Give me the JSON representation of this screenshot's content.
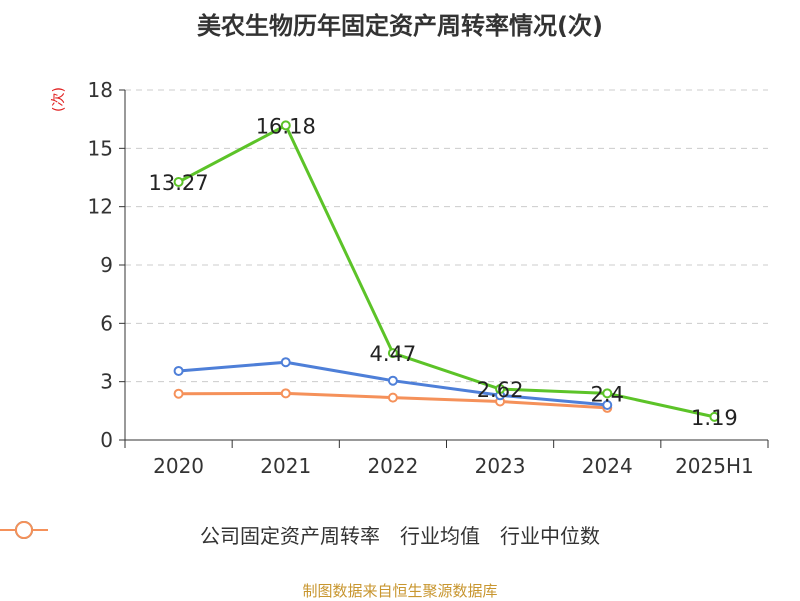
{
  "title": "美农生物历年固定资产周转率情况(次)",
  "source": "制图数据来自恒生聚源数据库",
  "chart_data": {
    "type": "line",
    "title": "美农生物历年固定资产周转率情况(次)",
    "xlabel": "",
    "ylabel": "(次)",
    "categories": [
      "2020",
      "2021",
      "2022",
      "2023",
      "2024",
      "2025H1"
    ],
    "ylim": [
      0,
      18
    ],
    "yticks": [
      0,
      3,
      6,
      9,
      12,
      15,
      18
    ],
    "grid": true,
    "legend_position": "bottom",
    "series": [
      {
        "name": "公司固定资产周转率",
        "color": "#5cc328",
        "values": [
          13.27,
          16.18,
          4.47,
          2.62,
          2.4,
          1.19
        ],
        "labels": [
          "13.27",
          "16.18",
          "4.47",
          "2.62",
          "2.4",
          "1.19"
        ]
      },
      {
        "name": "行业均值",
        "color": "#4e7fd8",
        "values": [
          3.55,
          4.0,
          3.05,
          2.3,
          1.8,
          null
        ]
      },
      {
        "name": "行业中位数",
        "color": "#f5915a",
        "values": [
          2.38,
          2.4,
          2.18,
          1.98,
          1.65,
          null
        ]
      }
    ]
  }
}
